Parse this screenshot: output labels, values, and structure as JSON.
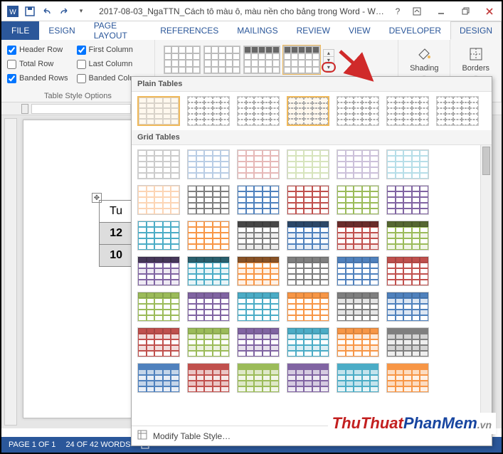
{
  "window": {
    "title": "2017-08-03_NgaTTN_Cách tô màu ô, màu nền cho bảng trong Word - W…"
  },
  "ribbon": {
    "file_label": "FILE",
    "tabs": [
      "ESIGN",
      "PAGE LAYOUT",
      "REFERENCES",
      "MAILINGS",
      "REVIEW",
      "VIEW",
      "DEVELOPER",
      "DESIGN"
    ],
    "active_tab": "DESIGN"
  },
  "table_style_options": {
    "group_label": "Table Style Options",
    "header_row": {
      "label": "Header Row",
      "checked": true
    },
    "total_row": {
      "label": "Total Row",
      "checked": false
    },
    "banded_rows": {
      "label": "Banded Rows",
      "checked": true
    },
    "first_column": {
      "label": "First Column",
      "checked": true
    },
    "last_column": {
      "label": "Last Column",
      "checked": false
    },
    "banded_columns": {
      "label": "Banded Columns",
      "checked": false
    }
  },
  "shading": {
    "label": "Shading"
  },
  "borders": {
    "label": "Borders"
  },
  "dropdown": {
    "section_plain": "Plain Tables",
    "section_grid": "Grid Tables",
    "modify_label": "Modify Table Style…",
    "plain_styles": [
      {
        "name": "table-grid",
        "border": true,
        "selected": true
      },
      {
        "name": "plain-1",
        "dash": true
      },
      {
        "name": "plain-2",
        "dash": true
      },
      {
        "name": "plain-3",
        "dash": true,
        "selected_alt": true
      },
      {
        "name": "plain-4",
        "dash": true
      },
      {
        "name": "plain-5",
        "dash": true
      },
      {
        "name": "plain-6",
        "dash": true
      }
    ],
    "grid_palette_colors": [
      "#7f7f7f",
      "#4f81bd",
      "#c0504d",
      "#9bbb59",
      "#8064a2",
      "#4bacc6",
      "#f79646"
    ],
    "grid_rows": 6
  },
  "doc_table": {
    "header": "Tu",
    "rows": [
      [
        "12"
      ],
      [
        "10"
      ]
    ]
  },
  "statusbar": {
    "page": "PAGE 1 OF 1",
    "words": "24 OF 42 WORDS"
  },
  "watermark": {
    "a": "ThuThuat",
    "b": "PhanMem",
    "c": ".vn"
  },
  "colors": {
    "accent": "#2b579a",
    "arrow": "#d02a2a"
  }
}
